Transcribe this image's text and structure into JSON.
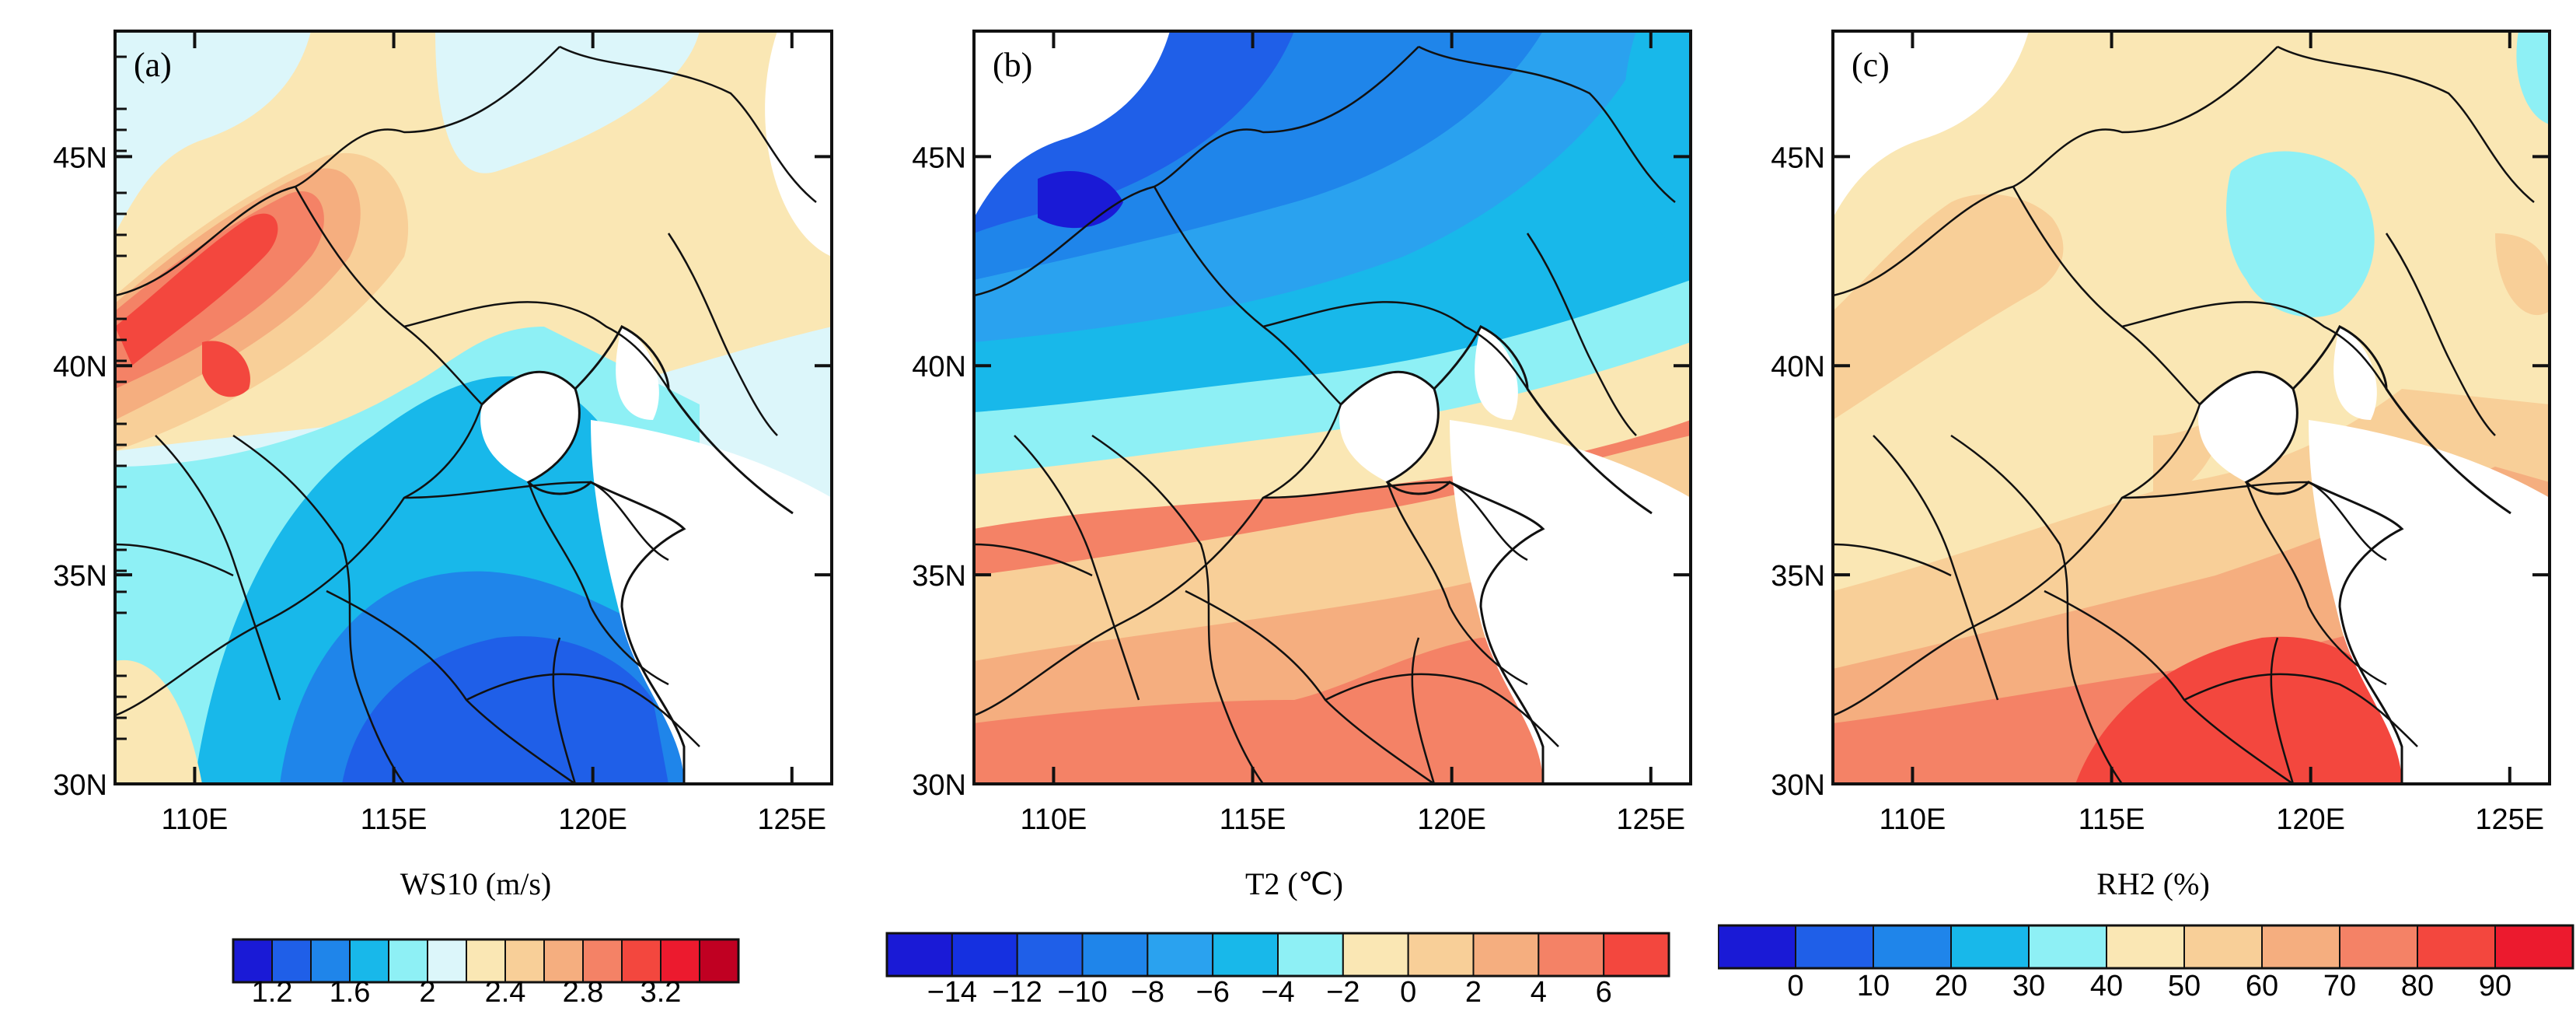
{
  "chart_data": [
    {
      "type": "heatmap",
      "panel_label": "(a)",
      "variable": "WS10",
      "title": "WS10 (m/s)",
      "y_ticks": [
        "30N",
        "35N",
        "40N",
        "45N"
      ],
      "x_ticks": [
        "110E",
        "115E",
        "120E",
        "125E"
      ],
      "lat_range": [
        30,
        48
      ],
      "lon_range": [
        108,
        126
      ],
      "colorbar": {
        "colors": [
          "#1a1ad6",
          "#1f5fe8",
          "#1f85ea",
          "#18b8ea",
          "#8ef0f5",
          "#dcf6fa",
          "#fae7b4",
          "#f8cf98",
          "#f5ae7f",
          "#f48266",
          "#f3473e",
          "#ec1a2e",
          "#c00022"
        ],
        "tick_labels": [
          "1.2",
          "1.6",
          "2",
          "2.4",
          "2.8",
          "3.2"
        ],
        "tick_boundaries": [
          1,
          3,
          5,
          7,
          9,
          11
        ],
        "boundary_values": [
          1.1,
          1.2,
          1.4,
          1.6,
          1.8,
          2,
          2.2,
          2.4,
          2.6,
          2.8,
          3,
          3.2,
          3.4
        ]
      }
    },
    {
      "type": "heatmap",
      "panel_label": "(b)",
      "variable": "T2",
      "title": "T2 (℃)",
      "y_ticks": [
        "30N",
        "35N",
        "40N",
        "45N"
      ],
      "x_ticks": [
        "110E",
        "115E",
        "120E",
        "125E"
      ],
      "lat_range": [
        30,
        48
      ],
      "lon_range": [
        108,
        126
      ],
      "colorbar": {
        "colors": [
          "#1a1ad6",
          "#1530e0",
          "#1f5fe8",
          "#1f85ea",
          "#2aa2ef",
          "#18b8ea",
          "#8ef0f5",
          "#fae7b4",
          "#f8cf98",
          "#f5ae7f",
          "#f48266",
          "#f3473e"
        ],
        "tick_labels": [
          "−14",
          "−12",
          "−10",
          "−8",
          "−6",
          "−4",
          "−2",
          "0",
          "2",
          "4",
          "6"
        ],
        "tick_boundaries": [
          1,
          2,
          3,
          4,
          5,
          6,
          7,
          8,
          9,
          10,
          11
        ],
        "boundary_values": [
          -14,
          -12,
          -10,
          -8,
          -6,
          -4,
          -2,
          0,
          2,
          4,
          6
        ]
      }
    },
    {
      "type": "heatmap",
      "panel_label": "(c)",
      "variable": "RH2",
      "title": "RH2 (%)",
      "y_ticks": [
        "30N",
        "35N",
        "40N",
        "45N"
      ],
      "x_ticks": [
        "110E",
        "115E",
        "120E",
        "125E"
      ],
      "lat_range": [
        30,
        48
      ],
      "lon_range": [
        108,
        126
      ],
      "colorbar": {
        "colors": [
          "#1a1ad6",
          "#1f5fe8",
          "#1f85ea",
          "#18b8ea",
          "#8ef0f5",
          "#fae7b4",
          "#f8cf98",
          "#f5ae7f",
          "#f48266",
          "#f3473e",
          "#ec1a2e"
        ],
        "tick_labels": [
          "0",
          "10",
          "20",
          "30",
          "40",
          "50",
          "60",
          "70",
          "80",
          "90"
        ],
        "tick_boundaries": [
          1,
          2,
          3,
          4,
          5,
          6,
          7,
          8,
          9,
          10
        ],
        "boundary_values": [
          0,
          10,
          20,
          30,
          40,
          50,
          60,
          70,
          80,
          90
        ]
      }
    }
  ]
}
